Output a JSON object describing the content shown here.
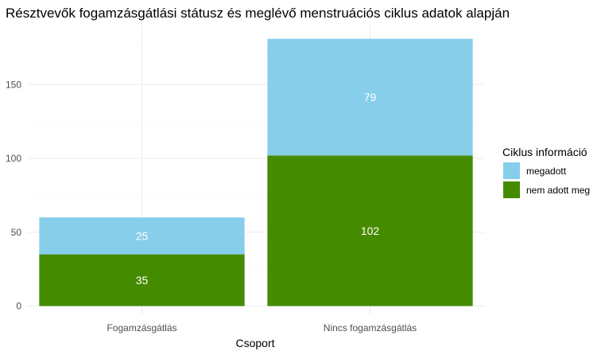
{
  "chart_data": {
    "type": "bar",
    "stacked": true,
    "title": "Résztvevők fogamzásgátlási státusz és meglévő menstruációs ciklus adatok alapján",
    "xlabel": "Csoport",
    "ylabel": "",
    "categories": [
      "Fogamzásgátlás",
      "Nincs fogamzásgátlás"
    ],
    "series": [
      {
        "name": "nem adott meg",
        "values": [
          35,
          102
        ],
        "color": "#458b00"
      },
      {
        "name": "megadott",
        "values": [
          25,
          79
        ],
        "color": "#87ceeb"
      }
    ],
    "ylim": [
      0,
      190
    ],
    "yticks": [
      0,
      50,
      100,
      150
    ],
    "legend": {
      "title": "Ciklus információ",
      "position": "right",
      "order": [
        "megadott",
        "nem adott meg"
      ]
    },
    "grid": true
  }
}
